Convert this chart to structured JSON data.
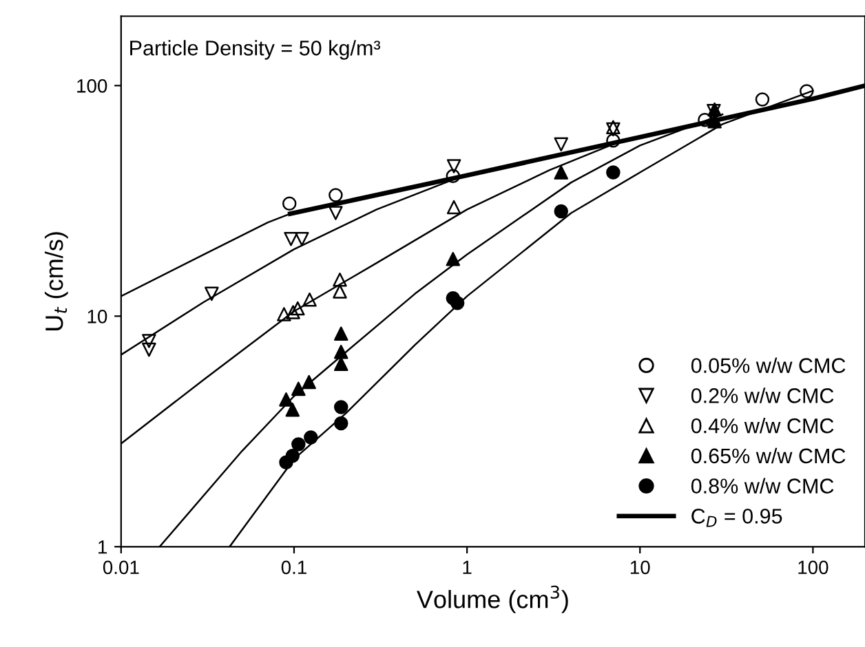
{
  "chart_data": {
    "type": "scatter",
    "xlabel": "Volume (cm$^{3}$)",
    "ylabel": "U$_{t}$ (cm/s)",
    "log": "xy",
    "xlim": [
      0.01,
      200
    ],
    "ylim": [
      1,
      200
    ],
    "xticks": [
      0.01,
      0.1,
      1,
      10,
      100
    ],
    "yticks": [
      1,
      10,
      100
    ],
    "grid": false,
    "legend": "bottom right",
    "annotations": [
      "Particle Density = 50 kg/m³"
    ],
    "series": [
      {
        "name": "0.05% w/w CMC",
        "color": "#000000",
        "marker": "circle_open",
        "x": [
          0.094,
          0.174,
          0.83,
          7.0,
          23.7,
          51,
          92
        ],
        "values": [
          30.8,
          33.5,
          40.5,
          57.7,
          71,
          87,
          94.5
        ]
      },
      {
        "name": "0.2% w/w CMC",
        "color": "#000000",
        "marker": "triangle_down_open",
        "x": [
          0.0145,
          0.0145,
          0.0334,
          0.096,
          0.111,
          0.174,
          0.84,
          3.5,
          7.0,
          26.7
        ],
        "values": [
          7.8,
          7.15,
          12.5,
          21.6,
          21.6,
          28,
          44.7,
          55.6,
          64.6,
          77.6
        ]
      },
      {
        "name": "0.4% w/w CMC",
        "color": "#000000",
        "marker": "triangle_open",
        "x": [
          0.0875,
          0.0987,
          0.105,
          0.123,
          0.184,
          0.184,
          0.84,
          7.0,
          26.7
        ],
        "values": [
          10.2,
          10.4,
          10.8,
          11.8,
          14.4,
          12.8,
          29.7,
          66,
          72.1
        ]
      },
      {
        "name": "0.65% w/w CMC",
        "color": "#000000",
        "marker": "triangle",
        "x": [
          0.09,
          0.098,
          0.106,
          0.122,
          0.187,
          0.187,
          0.187,
          0.83,
          3.5,
          27,
          27
        ],
        "values": [
          4.35,
          3.93,
          4.84,
          5.18,
          8.4,
          7.0,
          6.2,
          17.7,
          42,
          78.8,
          70
        ]
      },
      {
        "name": "0.8% w/w CMC",
        "color": "#000000",
        "marker": "circle",
        "x": [
          0.09,
          0.098,
          0.106,
          0.125,
          0.187,
          0.187,
          0.88,
          0.83,
          3.5,
          7.0
        ],
        "values": [
          2.32,
          2.48,
          2.78,
          2.98,
          4.03,
          3.43,
          11.4,
          11.96,
          28.5,
          42
        ]
      },
      {
        "type": "line",
        "color": "#000000",
        "x": [
          0.01,
          0.03,
          0.0706,
          0.095
        ],
        "values": [
          12.2,
          18.5,
          25.5,
          27.8
        ]
      },
      {
        "type": "line",
        "color": "#000000",
        "x": [
          0.01,
          0.03,
          0.1,
          0.3,
          0.9
        ],
        "values": [
          6.8,
          11.5,
          19.5,
          29,
          40
        ]
      },
      {
        "type": "line",
        "color": "#000000",
        "x": [
          0.01,
          0.03,
          0.1,
          0.3,
          1,
          3,
          8
        ],
        "values": [
          2.8,
          5.3,
          10.5,
          17,
          29,
          43,
          58
        ]
      },
      {
        "type": "line",
        "color": "#000000",
        "x": [
          0.0167,
          0.05,
          0.1,
          0.2,
          0.5,
          1,
          4,
          10,
          30
        ],
        "values": [
          1,
          2.6,
          4.5,
          7,
          12.5,
          18.5,
          38,
          55,
          75
        ]
      },
      {
        "type": "line",
        "color": "#000000",
        "x": [
          0.0424,
          0.1,
          0.2,
          0.5,
          1,
          4,
          10,
          30,
          100
        ],
        "values": [
          1,
          2.4,
          3.8,
          7.5,
          12.2,
          28,
          42,
          68,
          95
        ]
      },
      {
        "name": "C$_{D}$ = 0.95",
        "type": "line",
        "color": "#000000",
        "x": [
          0.095,
          1,
          10,
          100,
          200
        ],
        "values": [
          27.8,
          40.8,
          59.8,
          87.6,
          100
        ]
      }
    ]
  }
}
